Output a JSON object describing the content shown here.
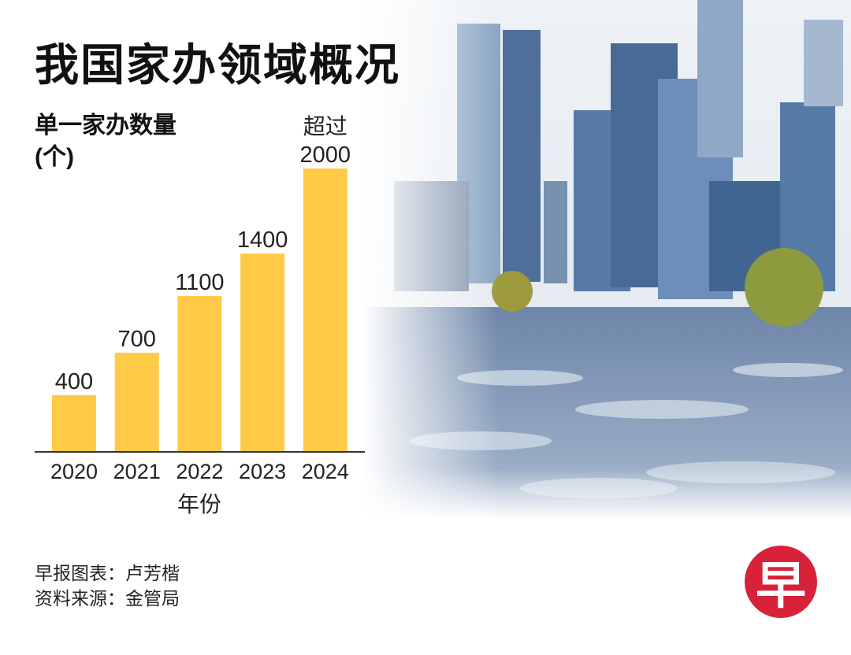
{
  "title": "我国家办领域概况",
  "colors": {
    "bar": "#FFCA45",
    "axis": "#333333",
    "logo": "#D7223A"
  },
  "chart_data": {
    "type": "bar",
    "title": "我国家办领域概况",
    "ylabel": "单一家办数量",
    "ylabel_unit": "(个)",
    "xlabel": "年份",
    "categories": [
      "2020",
      "2021",
      "2022",
      "2023",
      "2024"
    ],
    "values": [
      400,
      700,
      1100,
      1400,
      2000
    ],
    "data_labels": [
      "400",
      "700",
      "1100",
      "1400",
      "2000"
    ],
    "annotation": {
      "category": "2024",
      "text": "超过"
    },
    "ylim": [
      0,
      2000
    ],
    "grid": false
  },
  "footer": {
    "credit": "早报图表：卢芳楷",
    "source": "资料来源：金管局"
  },
  "logo_text": "早"
}
